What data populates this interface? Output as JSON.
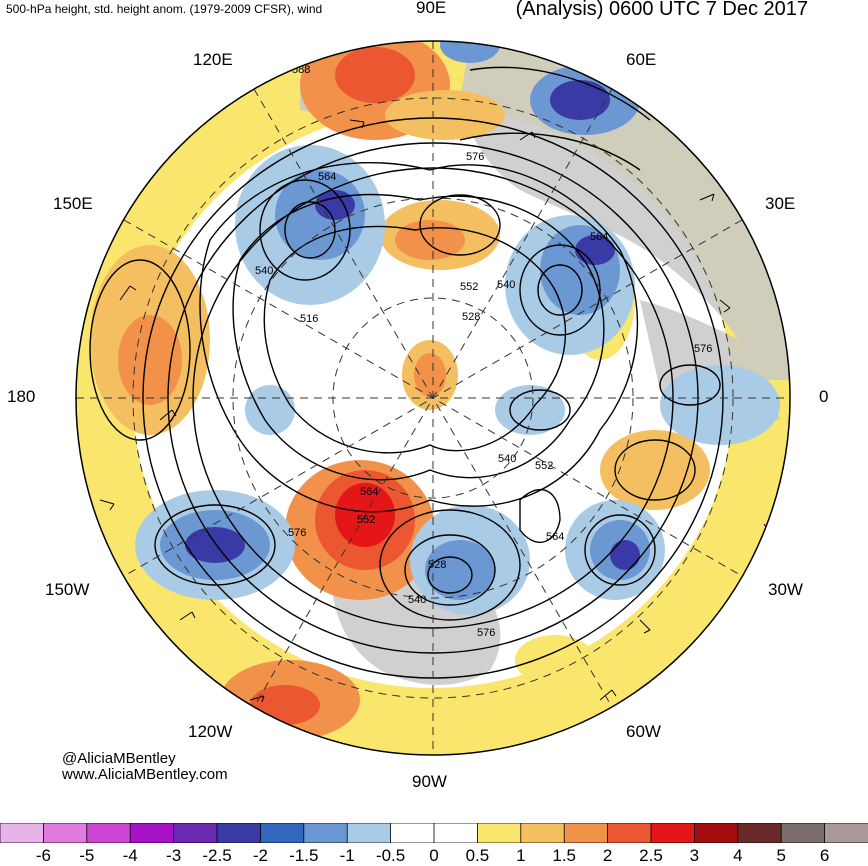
{
  "title": {
    "left": "500-hPa height, std. height anom. (1979-2009 CFSR), wind",
    "right": "(Analysis) 0600 UTC 7 Dec 2017"
  },
  "longitude_labels": {
    "e90": "90E",
    "e60": "60E",
    "e120": "120E",
    "e30": "30E",
    "e150": "150E",
    "lon180": "180",
    "lon0": "0",
    "w150": "150W",
    "w30": "30W",
    "w120": "120W",
    "w60": "60W",
    "w90": "90W"
  },
  "contour_labels": [
    "588",
    "576",
    "564",
    "552",
    "540",
    "516",
    "528",
    "540",
    "552",
    "564",
    "576",
    "552",
    "528",
    "540",
    "564",
    "576",
    "576",
    "588",
    "564"
  ],
  "credit": {
    "handle": "@AliciaMBentley",
    "url": "www.AliciaMBentley.com"
  },
  "colorbar": {
    "colors": [
      "#e8b3e8",
      "#e07be0",
      "#cd45d5",
      "#a812c6",
      "#6a29b0",
      "#3a3aa6",
      "#3368c0",
      "#6b98d2",
      "#a9cbe6",
      "#ffffff",
      "#ffffff",
      "#fbe66d",
      "#f4bf60",
      "#f1914a",
      "#ea5731",
      "#e41617",
      "#a30c0c",
      "#6b2a2a",
      "#7c6d6d",
      "#a89898"
    ],
    "ticks": [
      "-6",
      "-5",
      "-4",
      "-3",
      "-2.5",
      "-2",
      "-1.5",
      "-1",
      "-0.5",
      "0",
      "0.5",
      "1",
      "1.5",
      "2",
      "2.5",
      "3",
      "4",
      "5",
      "6"
    ]
  },
  "anomaly_palette": {
    "neg_strong": "#3a3aa6",
    "neg_mid": "#6b98d2",
    "neg_weak": "#a9cbe6",
    "pos_weak": "#fbe66d",
    "pos_mid": "#f4bf60",
    "pos_strong": "#f1914a",
    "pos_vstrong": "#ea5731",
    "pos_extreme": "#e41617",
    "land": "#c8c8c8"
  }
}
